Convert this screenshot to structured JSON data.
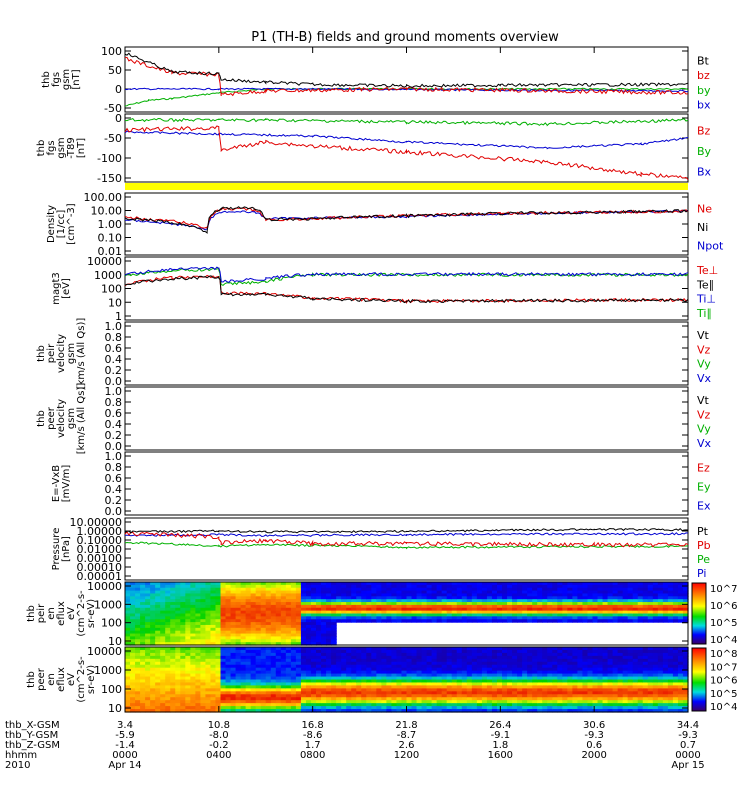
{
  "title": "P1 (TH-B) fields and ground moments overview",
  "panels": [
    {
      "id": "fgs",
      "ylabel": [
        "thb",
        "fgs",
        "gsm",
        "[nT]"
      ],
      "ticks": [
        "100",
        "50",
        "0",
        "-50"
      ],
      "legend": [
        {
          "text": "Bt",
          "color": "#000000"
        },
        {
          "text": "bz",
          "color": "#e00000"
        },
        {
          "text": "by",
          "color": "#00b000"
        },
        {
          "text": "bx",
          "color": "#0000d0"
        }
      ]
    },
    {
      "id": "fgs_t89",
      "ylabel": [
        "thb",
        "fgs",
        "gsm",
        "-T89",
        "[nT]"
      ],
      "ticks": [
        "0",
        "-50",
        "-100",
        "-150"
      ],
      "legend": [
        {
          "text": "Bz",
          "color": "#e00000"
        },
        {
          "text": "By",
          "color": "#00b000"
        },
        {
          "text": "Bx",
          "color": "#0000d0"
        }
      ]
    },
    {
      "id": "density",
      "ylabel": [
        "Density",
        "[1/cc]",
        "[cm^-3]"
      ],
      "ticks": [
        "100.00",
        "10.00",
        "1.00",
        "0.10",
        "0.01"
      ],
      "legend": [
        {
          "text": "Ne",
          "color": "#e00000"
        },
        {
          "text": "Ni",
          "color": "#000000"
        },
        {
          "text": "Npot",
          "color": "#0000d0"
        }
      ]
    },
    {
      "id": "temp",
      "ylabel": [
        "magt3",
        "[eV]"
      ],
      "ticks": [
        "10000",
        "1000",
        "100",
        "10",
        "1"
      ],
      "legend": [
        {
          "text": "Te⊥",
          "color": "#e00000"
        },
        {
          "text": "Te∥",
          "color": "#000000"
        },
        {
          "text": "Ti⊥",
          "color": "#0000d0"
        },
        {
          "text": "Ti∥",
          "color": "#00b000"
        }
      ]
    },
    {
      "id": "peir_vel",
      "ylabel": [
        "thb",
        "peir",
        "velocity",
        "gsm",
        "[km/s (All Qs)]"
      ],
      "ticks": [
        "1.0",
        "0.8",
        "0.6",
        "0.4",
        "0.2",
        "0.0"
      ],
      "legend": [
        {
          "text": "Vt",
          "color": "#000000"
        },
        {
          "text": "Vz",
          "color": "#e00000"
        },
        {
          "text": "Vy",
          "color": "#00b000"
        },
        {
          "text": "Vx",
          "color": "#0000d0"
        }
      ]
    },
    {
      "id": "peer_vel",
      "ylabel": [
        "thb",
        "peer",
        "velocity",
        "gsm",
        "[km/s (All Qs)]"
      ],
      "ticks": [
        "1.0",
        "0.8",
        "0.6",
        "0.4",
        "0.2",
        "0.0"
      ],
      "legend": [
        {
          "text": "Vt",
          "color": "#000000"
        },
        {
          "text": "Vz",
          "color": "#e00000"
        },
        {
          "text": "Vy",
          "color": "#00b000"
        },
        {
          "text": "Vx",
          "color": "#0000d0"
        }
      ]
    },
    {
      "id": "efield",
      "ylabel": [
        "E=-VxB",
        "[mV/m]"
      ],
      "ticks": [
        "1.0",
        "0.8",
        "0.6",
        "0.4",
        "0.2",
        "0.0"
      ],
      "legend": [
        {
          "text": "Ez",
          "color": "#e00000"
        },
        {
          "text": "Ey",
          "color": "#00b000"
        },
        {
          "text": "Ex",
          "color": "#0000d0"
        }
      ]
    },
    {
      "id": "pressure",
      "ylabel": [
        "Pressure",
        "[nPa]"
      ],
      "ticks": [
        "10.00000",
        "1.00000",
        "0.10000",
        "0.01000",
        "0.00100",
        "0.00010",
        "0.00001"
      ],
      "legend": [
        {
          "text": "Pt",
          "color": "#000000"
        },
        {
          "text": "Pb",
          "color": "#e00000"
        },
        {
          "text": "Pe",
          "color": "#00b000"
        },
        {
          "text": "Pi",
          "color": "#0000d0"
        }
      ]
    },
    {
      "id": "peir_spec",
      "ylabel": [
        "thb",
        "peir",
        "en",
        "eflux",
        "eV",
        "(cm^2-s-",
        "sr-eV)"
      ],
      "ticks": [
        "10000",
        "1000",
        "100",
        "10"
      ],
      "colorbar": [
        "10^7",
        "10^6",
        "10^5",
        "10^4"
      ]
    },
    {
      "id": "peer_spec",
      "ylabel": [
        "thb",
        "peer",
        "en",
        "eflux",
        "eV",
        "(cm^2-s-",
        "sr-eV)"
      ],
      "ticks": [
        "10000",
        "1000",
        "100",
        "10"
      ],
      "colorbar": [
        "10^8",
        "10^7",
        "10^6",
        "10^5",
        "10^4"
      ]
    }
  ],
  "xaxis": {
    "labels": [
      "thb_X-GSM",
      "thb_Y-GSM",
      "thb_Z-GSM",
      "hhmm",
      "2010"
    ],
    "cols": [
      [
        "3.4",
        "-5.9",
        "-1.4",
        "0000",
        "Apr 14"
      ],
      [
        "10.8",
        "-8.0",
        "-0.2",
        "0400",
        ""
      ],
      [
        "16.8",
        "-8.6",
        "1.7",
        "0800",
        ""
      ],
      [
        "21.8",
        "-8.7",
        "2.6",
        "1200",
        ""
      ],
      [
        "26.4",
        "-9.1",
        "1.8",
        "1600",
        ""
      ],
      [
        "30.6",
        "-9.3",
        "0.6",
        "2000",
        ""
      ],
      [
        "34.4",
        "-9.3",
        "0.7",
        "0000",
        "Apr 15"
      ]
    ]
  },
  "chart_data": {
    "type": "line",
    "title": "P1 (TH-B) fields and ground moments overview",
    "x_range": [
      "2010-04-14 00:00",
      "2010-04-15 00:00"
    ],
    "x_ticks_hhmm": [
      "0000",
      "0400",
      "0800",
      "1200",
      "1600",
      "2000",
      "0000"
    ],
    "series": [
      {
        "name": "Bt",
        "x_hours": [
          0,
          2,
          4,
          4.1,
          6,
          8,
          12,
          16,
          20,
          24
        ],
        "values": [
          95,
          45,
          40,
          25,
          20,
          12,
          8,
          10,
          12,
          12
        ]
      },
      {
        "name": "bz",
        "x_hours": [
          0,
          2,
          4,
          4.1,
          6,
          8,
          12,
          16,
          20,
          24
        ],
        "values": [
          80,
          42,
          38,
          -15,
          -5,
          -5,
          0,
          -3,
          -5,
          -10
        ]
      },
      {
        "name": "by",
        "x_hours": [
          0,
          2,
          4,
          6,
          8,
          12,
          16,
          20,
          24
        ],
        "values": [
          -45,
          -25,
          -10,
          0,
          0,
          0,
          0,
          0,
          0
        ]
      },
      {
        "name": "bx",
        "x_hours": [
          0,
          2,
          4,
          6,
          8,
          12,
          16,
          20,
          24
        ],
        "values": [
          0,
          0,
          0,
          0,
          0,
          0,
          -3,
          -5,
          -5
        ]
      },
      {
        "name": "Ne",
        "x_hours": [
          0,
          3.5,
          4.1,
          5.5,
          6,
          8,
          12,
          16,
          20,
          24
        ],
        "values": [
          3,
          0.5,
          12,
          12,
          2,
          2.5,
          4,
          6,
          8,
          9
        ]
      },
      {
        "name": "Ni",
        "x_hours": [
          0,
          3.5,
          4.1,
          5.5,
          6,
          8,
          12,
          16,
          20,
          24
        ],
        "values": [
          2.5,
          0.25,
          15,
          15,
          2,
          2.5,
          4,
          6,
          8,
          9
        ]
      },
      {
        "name": "Pt",
        "x_hours": [
          0,
          4,
          6,
          12,
          20,
          24
        ],
        "values": [
          0.8,
          1.0,
          0.8,
          0.9,
          1.5,
          1.4
        ]
      },
      {
        "name": "Pb",
        "x_hours": [
          0,
          4,
          6,
          12,
          20,
          24
        ],
        "values": [
          0.5,
          0.2,
          0.05,
          0.04,
          0.03,
          0.03
        ]
      }
    ]
  }
}
